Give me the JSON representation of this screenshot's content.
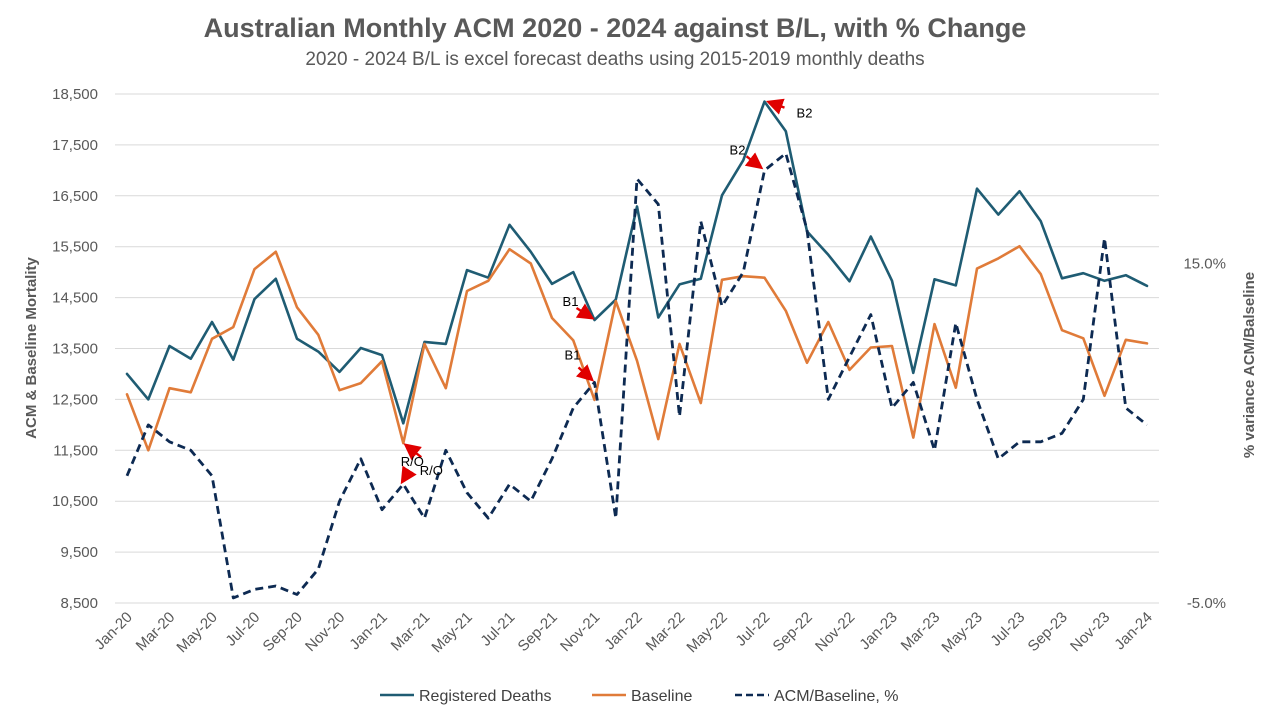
{
  "chart_data": {
    "type": "line",
    "title": "Australian Monthly ACM 2020 - 2024 against B/L, with % Change",
    "subtitle": "2020 - 2024 B/L is excel forecast deaths using 2015-2019 monthly deaths",
    "ylabel": "ACM & Baseline Mortality",
    "y2label": "% variance ACM/Balseline",
    "ylim": [
      8500,
      18500
    ],
    "y2lim": [
      -5.0,
      25.0
    ],
    "yticks": [
      "8,500",
      "9,500",
      "10,500",
      "11,500",
      "12,500",
      "13,500",
      "14,500",
      "15,500",
      "16,500",
      "17,500",
      "18,500"
    ],
    "y2ticks": [
      {
        "value": -5.0,
        "label": "-5.0%"
      },
      {
        "value": 15.0,
        "label": "15.0%"
      }
    ],
    "x": [
      "Jan-20",
      "Feb-20",
      "Mar-20",
      "Apr-20",
      "May-20",
      "Jun-20",
      "Jul-20",
      "Aug-20",
      "Sep-20",
      "Oct-20",
      "Nov-20",
      "Dec-20",
      "Jan-21",
      "Feb-21",
      "Mar-21",
      "Apr-21",
      "May-21",
      "Jun-21",
      "Jul-21",
      "Aug-21",
      "Sep-21",
      "Oct-21",
      "Nov-21",
      "Dec-21",
      "Jan-22",
      "Feb-22",
      "Mar-22",
      "Apr-22",
      "May-22",
      "Jun-22",
      "Jul-22",
      "Aug-22",
      "Sep-22",
      "Oct-22",
      "Nov-22",
      "Dec-22",
      "Jan-23",
      "Feb-23",
      "Mar-23",
      "Apr-23",
      "May-23",
      "Jun-23",
      "Jul-23",
      "Aug-23",
      "Sep-23",
      "Oct-23",
      "Nov-23",
      "Dec-23",
      "Jan-24"
    ],
    "xtick_labels": [
      "Jan-20",
      "Mar-20",
      "May-20",
      "Jul-20",
      "Sep-20",
      "Nov-20",
      "Jan-21",
      "Mar-21",
      "May-21",
      "Jul-21",
      "Sep-21",
      "Nov-21",
      "Jan-22",
      "Mar-22",
      "May-22",
      "Jul-22",
      "Sep-22",
      "Nov-22",
      "Jan-23",
      "Mar-23",
      "May-23",
      "Jul-23",
      "Sep-23",
      "Nov-23",
      "Jan-24"
    ],
    "grid": true,
    "legend_position": "bottom",
    "series": [
      {
        "name": "Registered Deaths",
        "axis": "left",
        "color": "#1f5c73",
        "dash": "solid",
        "values": [
          13000,
          12500,
          13550,
          13300,
          14020,
          13280,
          14470,
          14870,
          13690,
          13440,
          13040,
          13510,
          13370,
          12030,
          13630,
          13590,
          15040,
          14890,
          15930,
          15400,
          14770,
          15000,
          14060,
          14460,
          16290,
          14110,
          14760,
          14870,
          16510,
          17200,
          18350,
          17770,
          15800,
          15340,
          14820,
          15700,
          14830,
          13020,
          14860,
          14740,
          16640,
          16130,
          16590,
          16000,
          14880,
          14980,
          14830,
          14940,
          14730
        ]
      },
      {
        "name": "Baseline",
        "axis": "left",
        "color": "#e07b39",
        "dash": "solid",
        "values": [
          12600,
          11500,
          12720,
          12640,
          13690,
          13920,
          15060,
          15400,
          14310,
          13770,
          12680,
          12820,
          13250,
          11640,
          13590,
          12720,
          14630,
          14830,
          15450,
          15170,
          14100,
          13660,
          12490,
          14430,
          13260,
          11720,
          13590,
          12430,
          14850,
          14920,
          14890,
          14240,
          13220,
          14020,
          13080,
          13520,
          13550,
          11750,
          13980,
          12730,
          15070,
          15270,
          15510,
          14960,
          13860,
          13700,
          12570,
          13670,
          13600
        ]
      },
      {
        "name": "ACM/Baseline, %",
        "axis": "right",
        "color": "#0d2a52",
        "dash": "dashed",
        "values": [
          2.5,
          5.5,
          4.5,
          4.0,
          2.5,
          -4.7,
          -4.2,
          -4.0,
          -4.5,
          -3.0,
          1.0,
          3.5,
          0.5,
          2.0,
          0.0,
          4.0,
          1.5,
          0.0,
          2.0,
          1.0,
          3.5,
          6.5,
          8.0,
          0.0,
          20.0,
          18.5,
          6.0,
          17.5,
          12.5,
          14.5,
          20.5,
          21.5,
          17.0,
          7.0,
          9.5,
          12.0,
          6.5,
          8.0,
          4.0,
          11.5,
          7.0,
          3.5,
          4.5,
          4.5,
          5.0,
          7.0,
          16.5,
          6.5,
          5.5
        ]
      }
    ],
    "annotations": [
      {
        "text": "B2",
        "series": "Registered Deaths",
        "x": "Jul-22"
      },
      {
        "text": "B1",
        "series": "Registered Deaths",
        "x": "Nov-21"
      },
      {
        "text": "R/O",
        "series": "Baseline",
        "x": "Feb-21"
      },
      {
        "text": "B2",
        "series": "ACM/Baseline, %",
        "x": "Jul-22"
      },
      {
        "text": "B1",
        "series": "ACM/Baseline, %",
        "x": "Nov-21"
      },
      {
        "text": "R/O",
        "series": "ACM/Baseline, %",
        "x": "Feb-21"
      }
    ],
    "annotation_arrow_color": "#e00000"
  }
}
